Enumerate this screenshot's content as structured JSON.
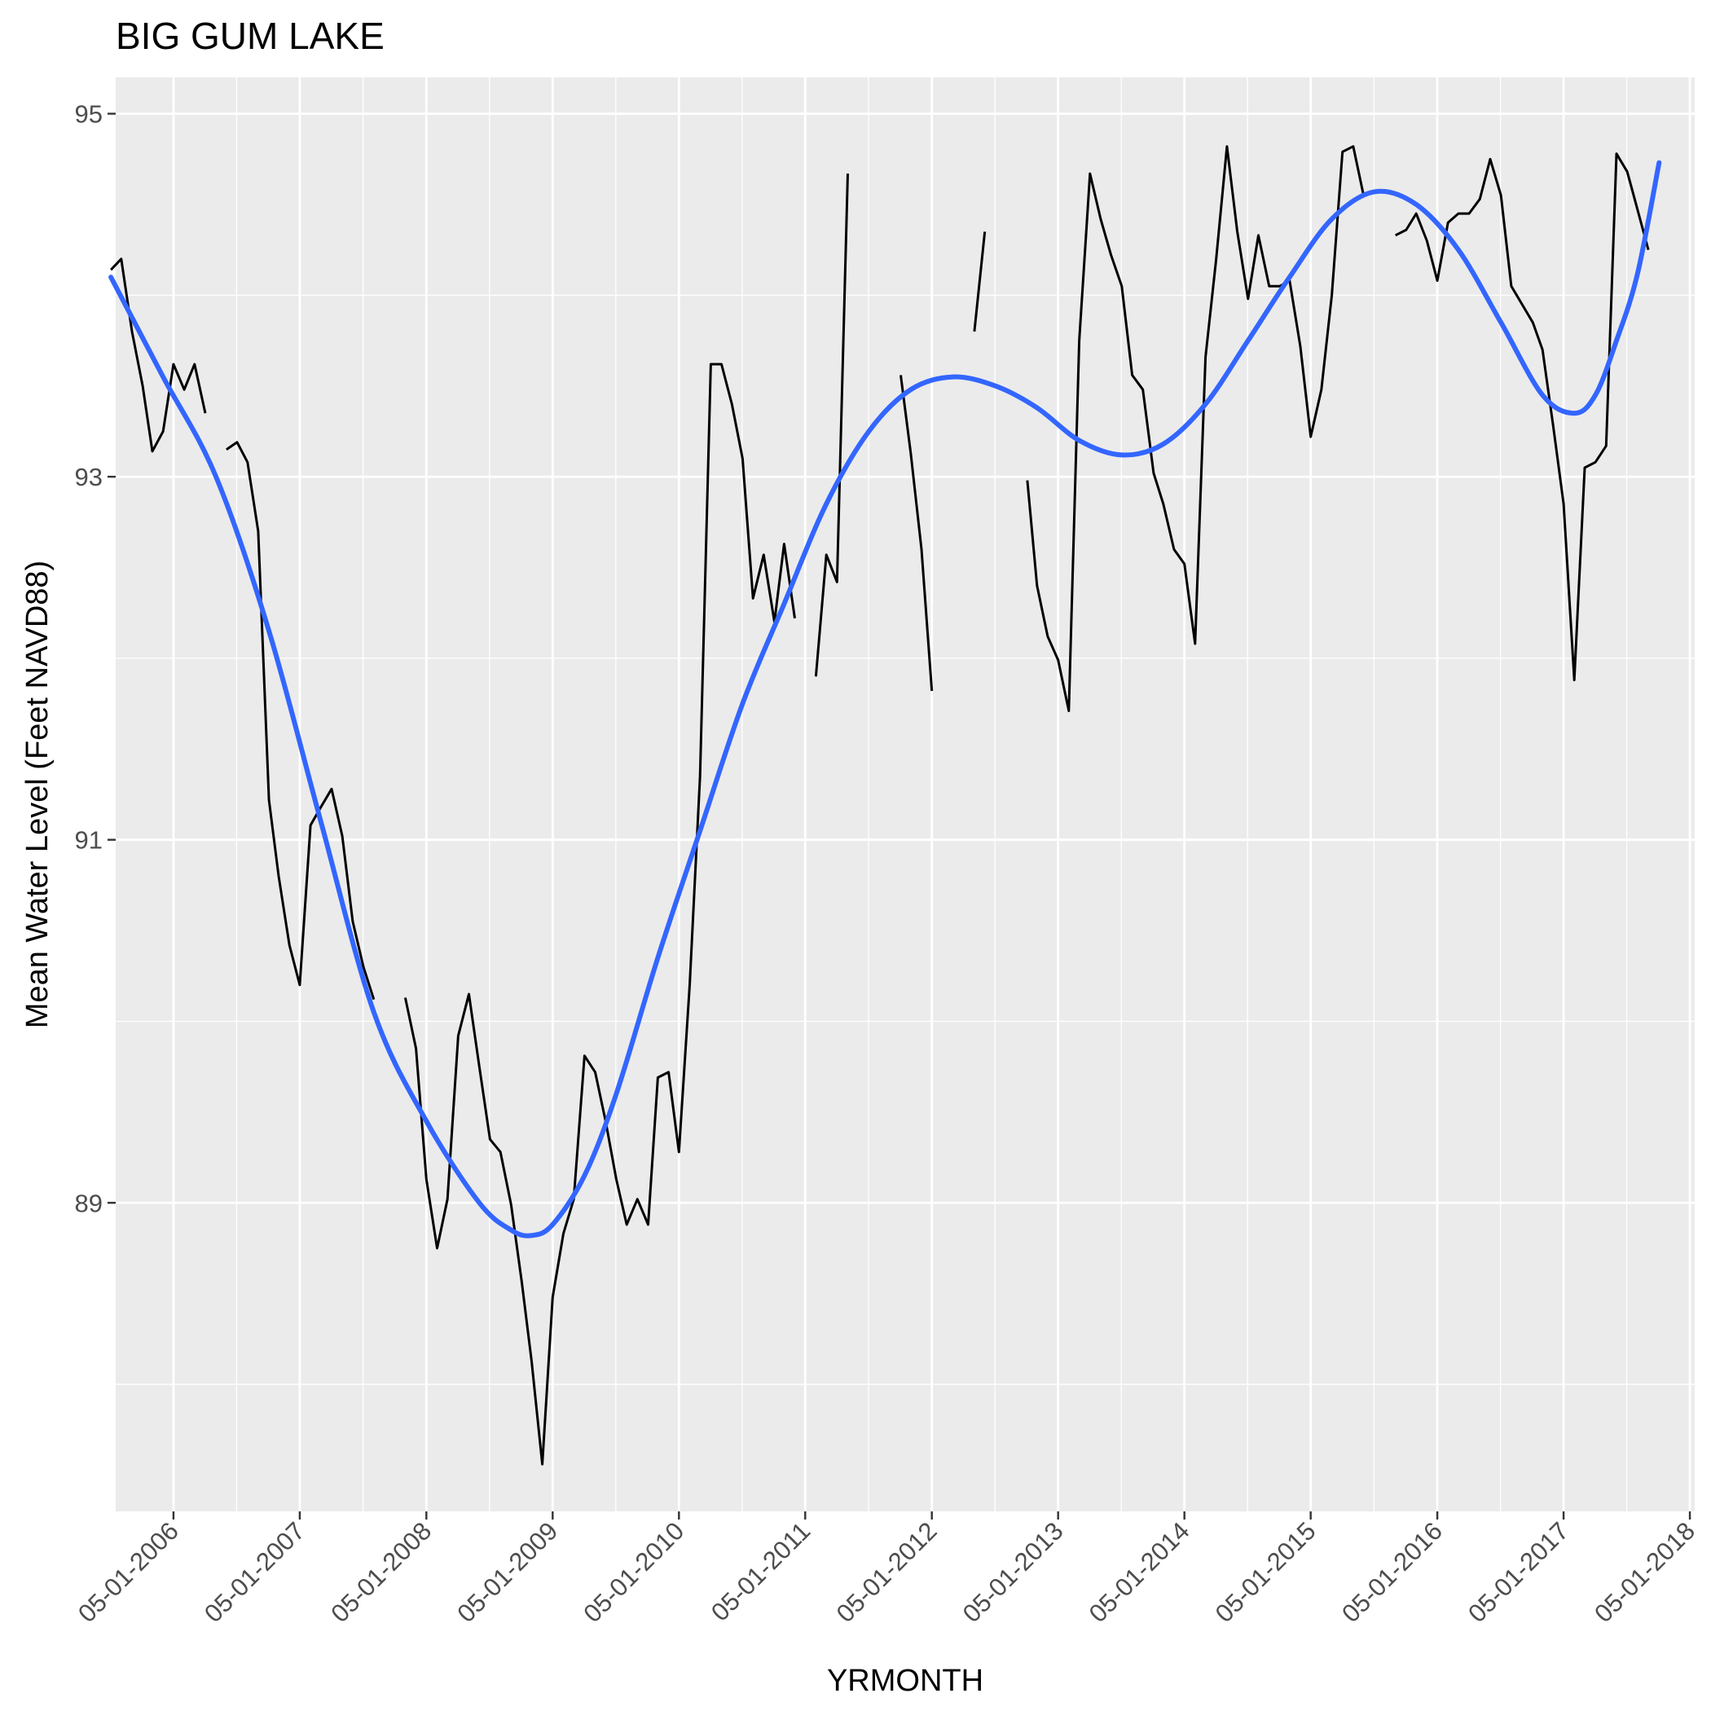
{
  "chart_data": {
    "type": "line",
    "title": "BIG GUM LAKE",
    "xlabel": "YRMONTH",
    "ylabel": "Mean Water Level (Feet NAVD88)",
    "y_ticks": [
      89,
      91,
      93,
      95
    ],
    "ylim": [
      87.3,
      95.2
    ],
    "x_ticks": [
      "05-01-2006",
      "05-01-2007",
      "05-01-2008",
      "05-01-2009",
      "05-01-2010",
      "05-01-2011",
      "05-01-2012",
      "05-01-2013",
      "05-01-2014",
      "05-01-2015",
      "05-01-2016",
      "05-01-2017",
      "05-01-2018"
    ],
    "xlim": [
      "2005-11-15",
      "2018-05-15"
    ],
    "grid": true,
    "background": "#ebebeb",
    "series": [
      {
        "kind": "observed",
        "color": "#000000",
        "segments": [
          [
            [
              "2005-11-01",
              94.14
            ],
            [
              "2005-12-01",
              94.2
            ],
            [
              "2006-01-01",
              93.8
            ],
            [
              "2006-02-01",
              93.5
            ],
            [
              "2006-03-01",
              93.14
            ],
            [
              "2006-04-01",
              93.25
            ],
            [
              "2006-05-01",
              93.62
            ],
            [
              "2006-06-01",
              93.48
            ],
            [
              "2006-07-01",
              93.62
            ],
            [
              "2006-08-01",
              93.35
            ]
          ],
          [
            [
              "2006-10-01",
              93.15
            ],
            [
              "2006-11-01",
              93.19
            ],
            [
              "2006-12-01",
              93.08
            ],
            [
              "2007-01-01",
              92.7
            ],
            [
              "2007-02-01",
              91.22
            ],
            [
              "2007-03-01",
              90.8
            ],
            [
              "2007-04-01",
              90.42
            ],
            [
              "2007-05-01",
              90.2
            ],
            [
              "2007-06-01",
              91.08
            ],
            [
              "2007-07-01",
              91.18
            ],
            [
              "2007-08-01",
              91.28
            ],
            [
              "2007-09-01",
              91.02
            ],
            [
              "2007-10-01",
              90.55
            ],
            [
              "2007-11-01",
              90.3
            ],
            [
              "2007-12-01",
              90.12
            ]
          ],
          [
            [
              "2008-03-01",
              90.13
            ],
            [
              "2008-04-01",
              89.85
            ],
            [
              "2008-05-01",
              89.13
            ],
            [
              "2008-06-01",
              88.75
            ],
            [
              "2008-07-01",
              89.02
            ],
            [
              "2008-08-01",
              89.92
            ],
            [
              "2008-09-01",
              90.15
            ],
            [
              "2008-10-01",
              89.75
            ],
            [
              "2008-11-01",
              89.35
            ],
            [
              "2008-12-01",
              89.28
            ],
            [
              "2009-01-01",
              88.99
            ],
            [
              "2009-02-01",
              88.56
            ],
            [
              "2009-03-01",
              88.13
            ],
            [
              "2009-04-01",
              87.56
            ],
            [
              "2009-05-01",
              88.48
            ],
            [
              "2009-06-01",
              88.83
            ],
            [
              "2009-07-01",
              89.02
            ],
            [
              "2009-08-01",
              89.81
            ],
            [
              "2009-09-01",
              89.72
            ],
            [
              "2009-10-01",
              89.45
            ],
            [
              "2009-11-01",
              89.13
            ],
            [
              "2009-12-01",
              88.88
            ],
            [
              "2010-01-01",
              89.02
            ],
            [
              "2010-02-01",
              88.88
            ],
            [
              "2010-03-01",
              89.69
            ],
            [
              "2010-04-01",
              89.72
            ],
            [
              "2010-05-01",
              89.28
            ],
            [
              "2010-06-01",
              90.2
            ],
            [
              "2010-07-01",
              91.35
            ],
            [
              "2010-08-01",
              93.62
            ],
            [
              "2010-09-01",
              93.62
            ],
            [
              "2010-10-01",
              93.4
            ],
            [
              "2010-11-01",
              93.1
            ],
            [
              "2010-12-01",
              92.33
            ],
            [
              "2011-01-01",
              92.57
            ],
            [
              "2011-02-01",
              92.2
            ],
            [
              "2011-03-01",
              92.63
            ],
            [
              "2011-04-01",
              92.22
            ]
          ],
          [
            [
              "2011-06-01",
              91.9
            ],
            [
              "2011-07-01",
              92.57
            ],
            [
              "2011-08-01",
              92.42
            ],
            [
              "2011-09-01",
              94.67
            ]
          ],
          [
            [
              "2012-02-01",
              93.56
            ],
            [
              "2012-03-01",
              93.13
            ],
            [
              "2012-04-01",
              92.6
            ],
            [
              "2012-05-01",
              91.82
            ]
          ],
          [
            [
              "2012-09-01",
              93.8
            ],
            [
              "2012-10-01",
              94.35
            ]
          ],
          [
            [
              "2013-02-01",
              92.98
            ],
            [
              "2013-03-01",
              92.4
            ],
            [
              "2013-04-01",
              92.12
            ],
            [
              "2013-05-01",
              91.99
            ],
            [
              "2013-06-01",
              91.71
            ],
            [
              "2013-07-01",
              93.75
            ],
            [
              "2013-08-01",
              94.67
            ],
            [
              "2013-09-01",
              94.42
            ],
            [
              "2013-10-01",
              94.22
            ],
            [
              "2013-11-01",
              94.05
            ],
            [
              "2013-12-01",
              93.56
            ],
            [
              "2014-01-01",
              93.48
            ],
            [
              "2014-02-01",
              93.02
            ],
            [
              "2014-03-01",
              92.85
            ],
            [
              "2014-04-01",
              92.6
            ],
            [
              "2014-05-01",
              92.52
            ],
            [
              "2014-06-01",
              92.08
            ],
            [
              "2014-07-01",
              93.66
            ],
            [
              "2014-08-01",
              94.2
            ],
            [
              "2014-09-01",
              94.82
            ],
            [
              "2014-10-01",
              94.35
            ],
            [
              "2014-11-01",
              93.98
            ],
            [
              "2014-12-01",
              94.33
            ],
            [
              "2015-01-01",
              94.05
            ],
            [
              "2015-02-01",
              94.05
            ],
            [
              "2015-03-01",
              94.08
            ],
            [
              "2015-04-01",
              93.72
            ],
            [
              "2015-05-01",
              93.22
            ],
            [
              "2015-06-01",
              93.48
            ],
            [
              "2015-07-01",
              94.0
            ],
            [
              "2015-08-01",
              94.79
            ],
            [
              "2015-09-01",
              94.82
            ],
            [
              "2015-10-01",
              94.55
            ]
          ],
          [
            [
              "2016-01-01",
              94.33
            ],
            [
              "2016-02-01",
              94.36
            ],
            [
              "2016-03-01",
              94.45
            ],
            [
              "2016-04-01",
              94.3
            ],
            [
              "2016-05-01",
              94.08
            ],
            [
              "2016-06-01",
              94.4
            ],
            [
              "2016-07-01",
              94.45
            ],
            [
              "2016-08-01",
              94.45
            ],
            [
              "2016-09-01",
              94.53
            ],
            [
              "2016-10-01",
              94.75
            ],
            [
              "2016-11-01",
              94.55
            ],
            [
              "2016-12-01",
              94.05
            ],
            [
              "2017-01-01",
              93.95
            ],
            [
              "2017-02-01",
              93.85
            ],
            [
              "2017-03-01",
              93.7
            ],
            [
              "2017-04-01",
              93.28
            ],
            [
              "2017-05-01",
              92.85
            ],
            [
              "2017-06-01",
              91.88
            ],
            [
              "2017-07-01",
              93.05
            ],
            [
              "2017-08-01",
              93.08
            ],
            [
              "2017-09-01",
              93.17
            ],
            [
              "2017-10-01",
              94.78
            ],
            [
              "2017-11-01",
              94.68
            ],
            [
              "2017-12-01",
              94.47
            ],
            [
              "2018-01-01",
              94.25
            ]
          ]
        ]
      },
      {
        "kind": "smooth",
        "color": "#3366ff",
        "points": [
          [
            "2005-11-01",
            94.1
          ],
          [
            "2006-04-01",
            93.55
          ],
          [
            "2006-09-01",
            93.0
          ],
          [
            "2007-02-01",
            92.15
          ],
          [
            "2007-07-01",
            91.1
          ],
          [
            "2007-12-01",
            90.05
          ],
          [
            "2008-05-01",
            89.45
          ],
          [
            "2008-10-01",
            89.0
          ],
          [
            "2009-01-01",
            88.85
          ],
          [
            "2009-03-01",
            88.82
          ],
          [
            "2009-05-01",
            88.88
          ],
          [
            "2009-08-01",
            89.15
          ],
          [
            "2009-11-01",
            89.6
          ],
          [
            "2010-03-01",
            90.35
          ],
          [
            "2010-07-01",
            91.05
          ],
          [
            "2010-11-01",
            91.75
          ],
          [
            "2011-03-01",
            92.3
          ],
          [
            "2011-07-01",
            92.85
          ],
          [
            "2011-11-01",
            93.25
          ],
          [
            "2012-03-01",
            93.48
          ],
          [
            "2012-07-01",
            93.55
          ],
          [
            "2012-11-01",
            93.5
          ],
          [
            "2013-03-01",
            93.38
          ],
          [
            "2013-07-01",
            93.2
          ],
          [
            "2013-11-01",
            93.12
          ],
          [
            "2014-03-01",
            93.18
          ],
          [
            "2014-07-01",
            93.4
          ],
          [
            "2014-11-01",
            93.75
          ],
          [
            "2015-03-01",
            94.1
          ],
          [
            "2015-07-01",
            94.42
          ],
          [
            "2015-11-01",
            94.57
          ],
          [
            "2016-03-01",
            94.5
          ],
          [
            "2016-07-01",
            94.25
          ],
          [
            "2016-11-01",
            93.85
          ],
          [
            "2017-03-01",
            93.45
          ],
          [
            "2017-06-01",
            93.35
          ],
          [
            "2017-08-01",
            93.45
          ],
          [
            "2017-10-01",
            93.75
          ],
          [
            "2017-12-01",
            94.12
          ],
          [
            "2018-02-01",
            94.73
          ]
        ]
      }
    ]
  }
}
